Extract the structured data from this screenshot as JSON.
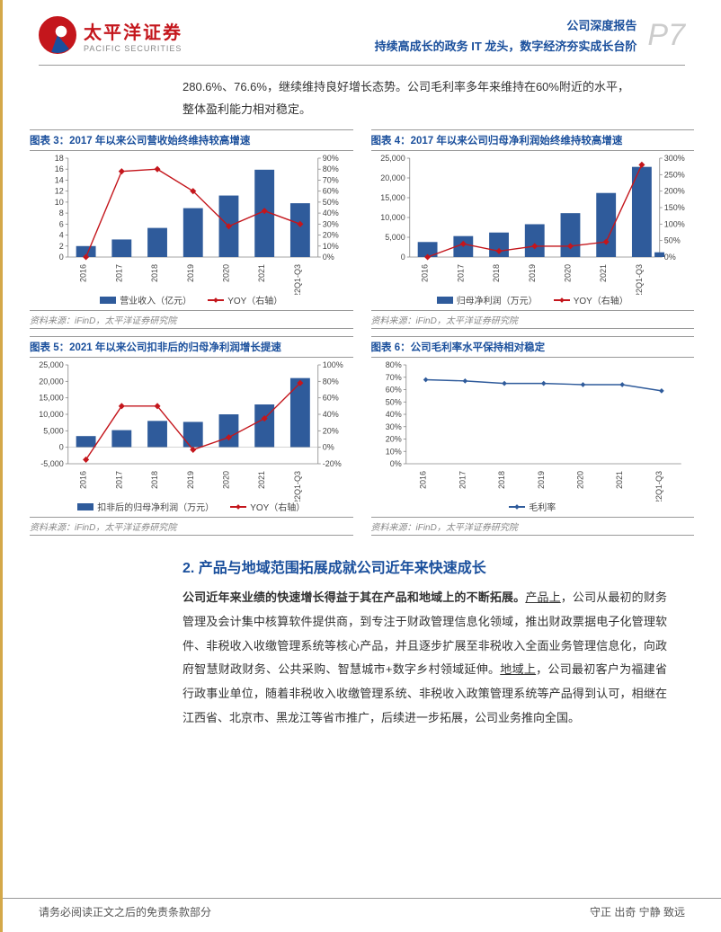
{
  "header": {
    "logo_cn": "太平洋证券",
    "logo_en": "PACIFIC SECURITIES",
    "doc_type": "公司深度报告",
    "subtitle": "持续高成长的政务 IT 龙头，数字经济夯实成长台阶",
    "page_label": "P7"
  },
  "intro": "280.6%、76.6%，继续维持良好增长态势。公司毛利率多年来维持在60%附近的水平，整体盈利能力相对稳定。",
  "chart_common": {
    "categories": [
      "2016",
      "2017",
      "2018",
      "2019",
      "2020",
      "2021",
      "2022Q1-Q3"
    ],
    "bar_color": "#2f5b9b",
    "line_color_red": "#c4161c",
    "line_color_blue": "#2f5b9b",
    "axis_color": "#888888",
    "bg": "#ffffff",
    "label_fontsize": 9,
    "title_fontsize": 11.5,
    "title_color": "#1a4f9c",
    "source_text": "资料来源：iFinD，太平洋证券研究院"
  },
  "chart3": {
    "title": "图表 3：2017 年以来公司营收始终维持较高增速",
    "type": "bar+line",
    "bars": [
      2.0,
      3.2,
      5.3,
      8.9,
      11.2,
      15.9,
      9.8
    ],
    "y_left": {
      "min": 0,
      "max": 18,
      "step": 2,
      "label": ""
    },
    "yoy": [
      0,
      78,
      80,
      60,
      28,
      42,
      30
    ],
    "y_right": {
      "min": 0,
      "max": 90,
      "step": 10,
      "suffix": "%"
    },
    "legend_bar": "营业收入（亿元）",
    "legend_line": "YOY（右轴）"
  },
  "chart4": {
    "title": "图表 4：2017 年以来公司归母净利润始终维持较高增速",
    "type": "bar+line",
    "bars": [
      3800,
      5300,
      6200,
      8300,
      11100,
      16200,
      22800
    ],
    "extra_bar": 1200,
    "y_left": {
      "min": 0,
      "max": 25000,
      "step": 5000
    },
    "yoy": [
      0,
      40,
      18,
      33,
      33,
      46,
      280
    ],
    "y_right": {
      "min": 0,
      "max": 300,
      "step": 50,
      "suffix": "%"
    },
    "legend_bar": "归母净利润（万元）",
    "legend_line": "YOY（右轴）"
  },
  "chart5": {
    "title": "图表 5：2021 年以来公司扣非后的归母净利润增长提速",
    "type": "bar+line",
    "bars": [
      3400,
      5200,
      8000,
      7700,
      10000,
      13000,
      21000
    ],
    "y_left": {
      "min": -5000,
      "max": 25000,
      "step": 5000
    },
    "yoy": [
      -15,
      50,
      50,
      -3,
      12,
      35,
      78
    ],
    "y_right": {
      "min": -20,
      "max": 100,
      "step": 20,
      "suffix": "%"
    },
    "legend_bar": "扣非后的归母净利润（万元）",
    "legend_line": "YOY（右轴）"
  },
  "chart6": {
    "title": "图表 6：公司毛利率水平保持相对稳定",
    "type": "line",
    "values": [
      68,
      67,
      65,
      65,
      64,
      64,
      59
    ],
    "y_left": {
      "min": 0,
      "max": 80,
      "step": 10,
      "suffix": "%"
    },
    "legend_line": "毛利率"
  },
  "section2": {
    "title": "2. 产品与地域范围拓展成就公司近年来快速成长",
    "p1_lead": "公司近年来业绩的快速增长得益于其在产品和地域上的不断拓展。",
    "p1_u1": "产品上",
    "p1_a": "，公司从最初的财务管理及会计集中核算软件提供商，到专注于财政管理信息化领域，推出财政票据电子化管理软件、非税收入收缴管理系统等核心产品，并且逐步扩展至非税收入全面业务管理信息化，向政府智慧财政财务、公共采购、智慧城市+数字乡村领域延伸。",
    "p1_u2": "地域上",
    "p1_b": "，公司最初客户为福建省行政事业单位，随着非税收入收缴管理系统、非税收入政策管理系统等产品得到认可，相继在江西省、北京市、黑龙江等省市推广，后续进一步拓展，公司业务推向全国。"
  },
  "footer": {
    "left": "请务必阅读正文之后的免责条款部分",
    "right": "守正 出奇 宁静 致远"
  }
}
